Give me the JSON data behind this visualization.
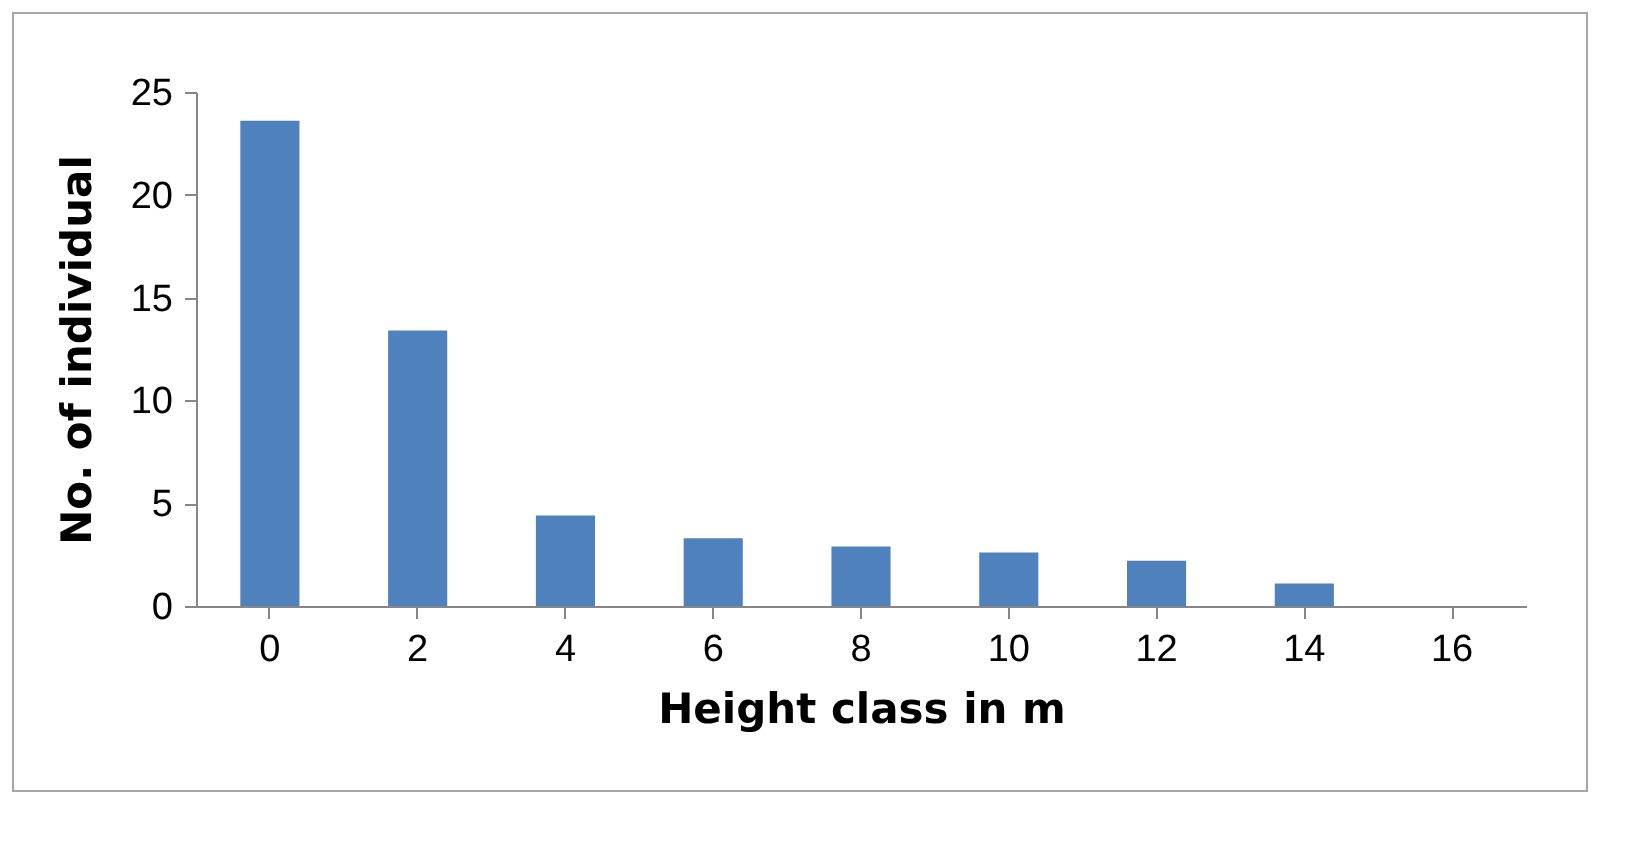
{
  "chart_data": {
    "type": "bar",
    "xlabel": "Height class in m",
    "ylabel": "No. of individual",
    "categories": [
      "0",
      "2",
      "4",
      "6",
      "8",
      "10",
      "12",
      "14",
      "16"
    ],
    "values": [
      23.6,
      13.4,
      4.4,
      3.3,
      2.9,
      2.6,
      2.2,
      1.1,
      0
    ],
    "color": "#4f81bd",
    "ylim": [
      0,
      25
    ],
    "yticks": [
      0,
      5,
      10,
      15,
      20,
      25
    ],
    "grid": false
  }
}
